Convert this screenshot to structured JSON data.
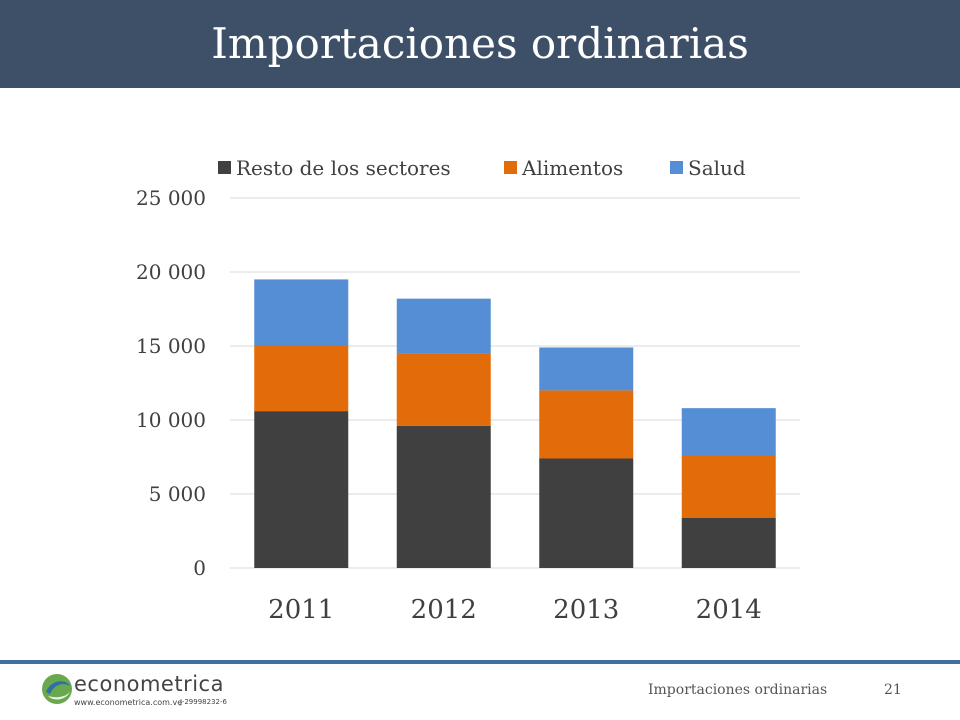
{
  "slide": {
    "title": "Importaciones ordinarias",
    "footer_text": "Importaciones ordinarias",
    "slide_number": "21",
    "accent_color": "#3e5068",
    "footer_line_color": "#3e6f9e"
  },
  "logo": {
    "wordmark": "econometrica",
    "url": "www.econometrica.com.ve",
    "rif": "J-29998232-6"
  },
  "chart_data": {
    "type": "bar",
    "stacked": true,
    "categories": [
      "2011",
      "2012",
      "2013",
      "2014"
    ],
    "series": [
      {
        "name": "Resto de los sectores",
        "color": "#404040",
        "values": [
          10600,
          9600,
          7400,
          3400
        ]
      },
      {
        "name": "Alimentos",
        "color": "#e36c0a",
        "values": [
          4400,
          4900,
          4600,
          4200
        ]
      },
      {
        "name": "Salud",
        "color": "#558ed5",
        "values": [
          4500,
          3700,
          2900,
          3200
        ]
      }
    ],
    "ylim": [
      0,
      25000
    ],
    "yticks": [
      "0",
      "5 000",
      "10 000",
      "15 000",
      "20 000",
      "25 000"
    ],
    "ytick_values": [
      0,
      5000,
      10000,
      15000,
      20000,
      25000
    ],
    "grid": true,
    "legend_position": "top"
  }
}
